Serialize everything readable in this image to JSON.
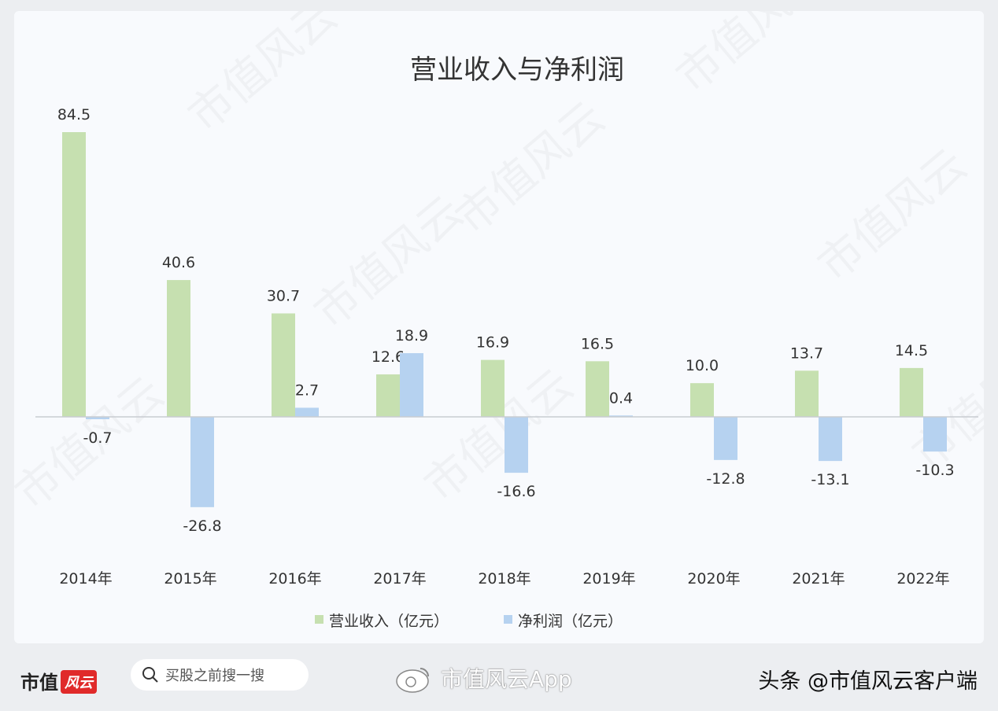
{
  "chart_data": {
    "type": "bar",
    "title": "营业收入与净利润",
    "categories": [
      "2014年",
      "2015年",
      "2016年",
      "2017年",
      "2018年",
      "2019年",
      "2020年",
      "2021年",
      "2022年"
    ],
    "series": [
      {
        "name": "营业收入（亿元）",
        "color": "#c6e0b0",
        "values": [
          84.5,
          40.6,
          30.7,
          12.6,
          16.9,
          16.5,
          10.0,
          13.7,
          14.5
        ]
      },
      {
        "name": "净利润（亿元）",
        "color": "#b6d2f0",
        "values": [
          -0.7,
          -26.8,
          2.7,
          18.9,
          -16.6,
          0.4,
          -12.8,
          -13.1,
          -10.3
        ]
      }
    ],
    "legend": "bottom",
    "grid": false,
    "ylim": [
      -40,
      95
    ]
  },
  "footer": {
    "logo_text": "市值",
    "logo_mark": "风云",
    "search_placeholder": "买股之前搜一搜",
    "weibo_text": "市值风云App",
    "toutiao_text": "头条 @市值风云客户端"
  },
  "watermark": "市值风云"
}
